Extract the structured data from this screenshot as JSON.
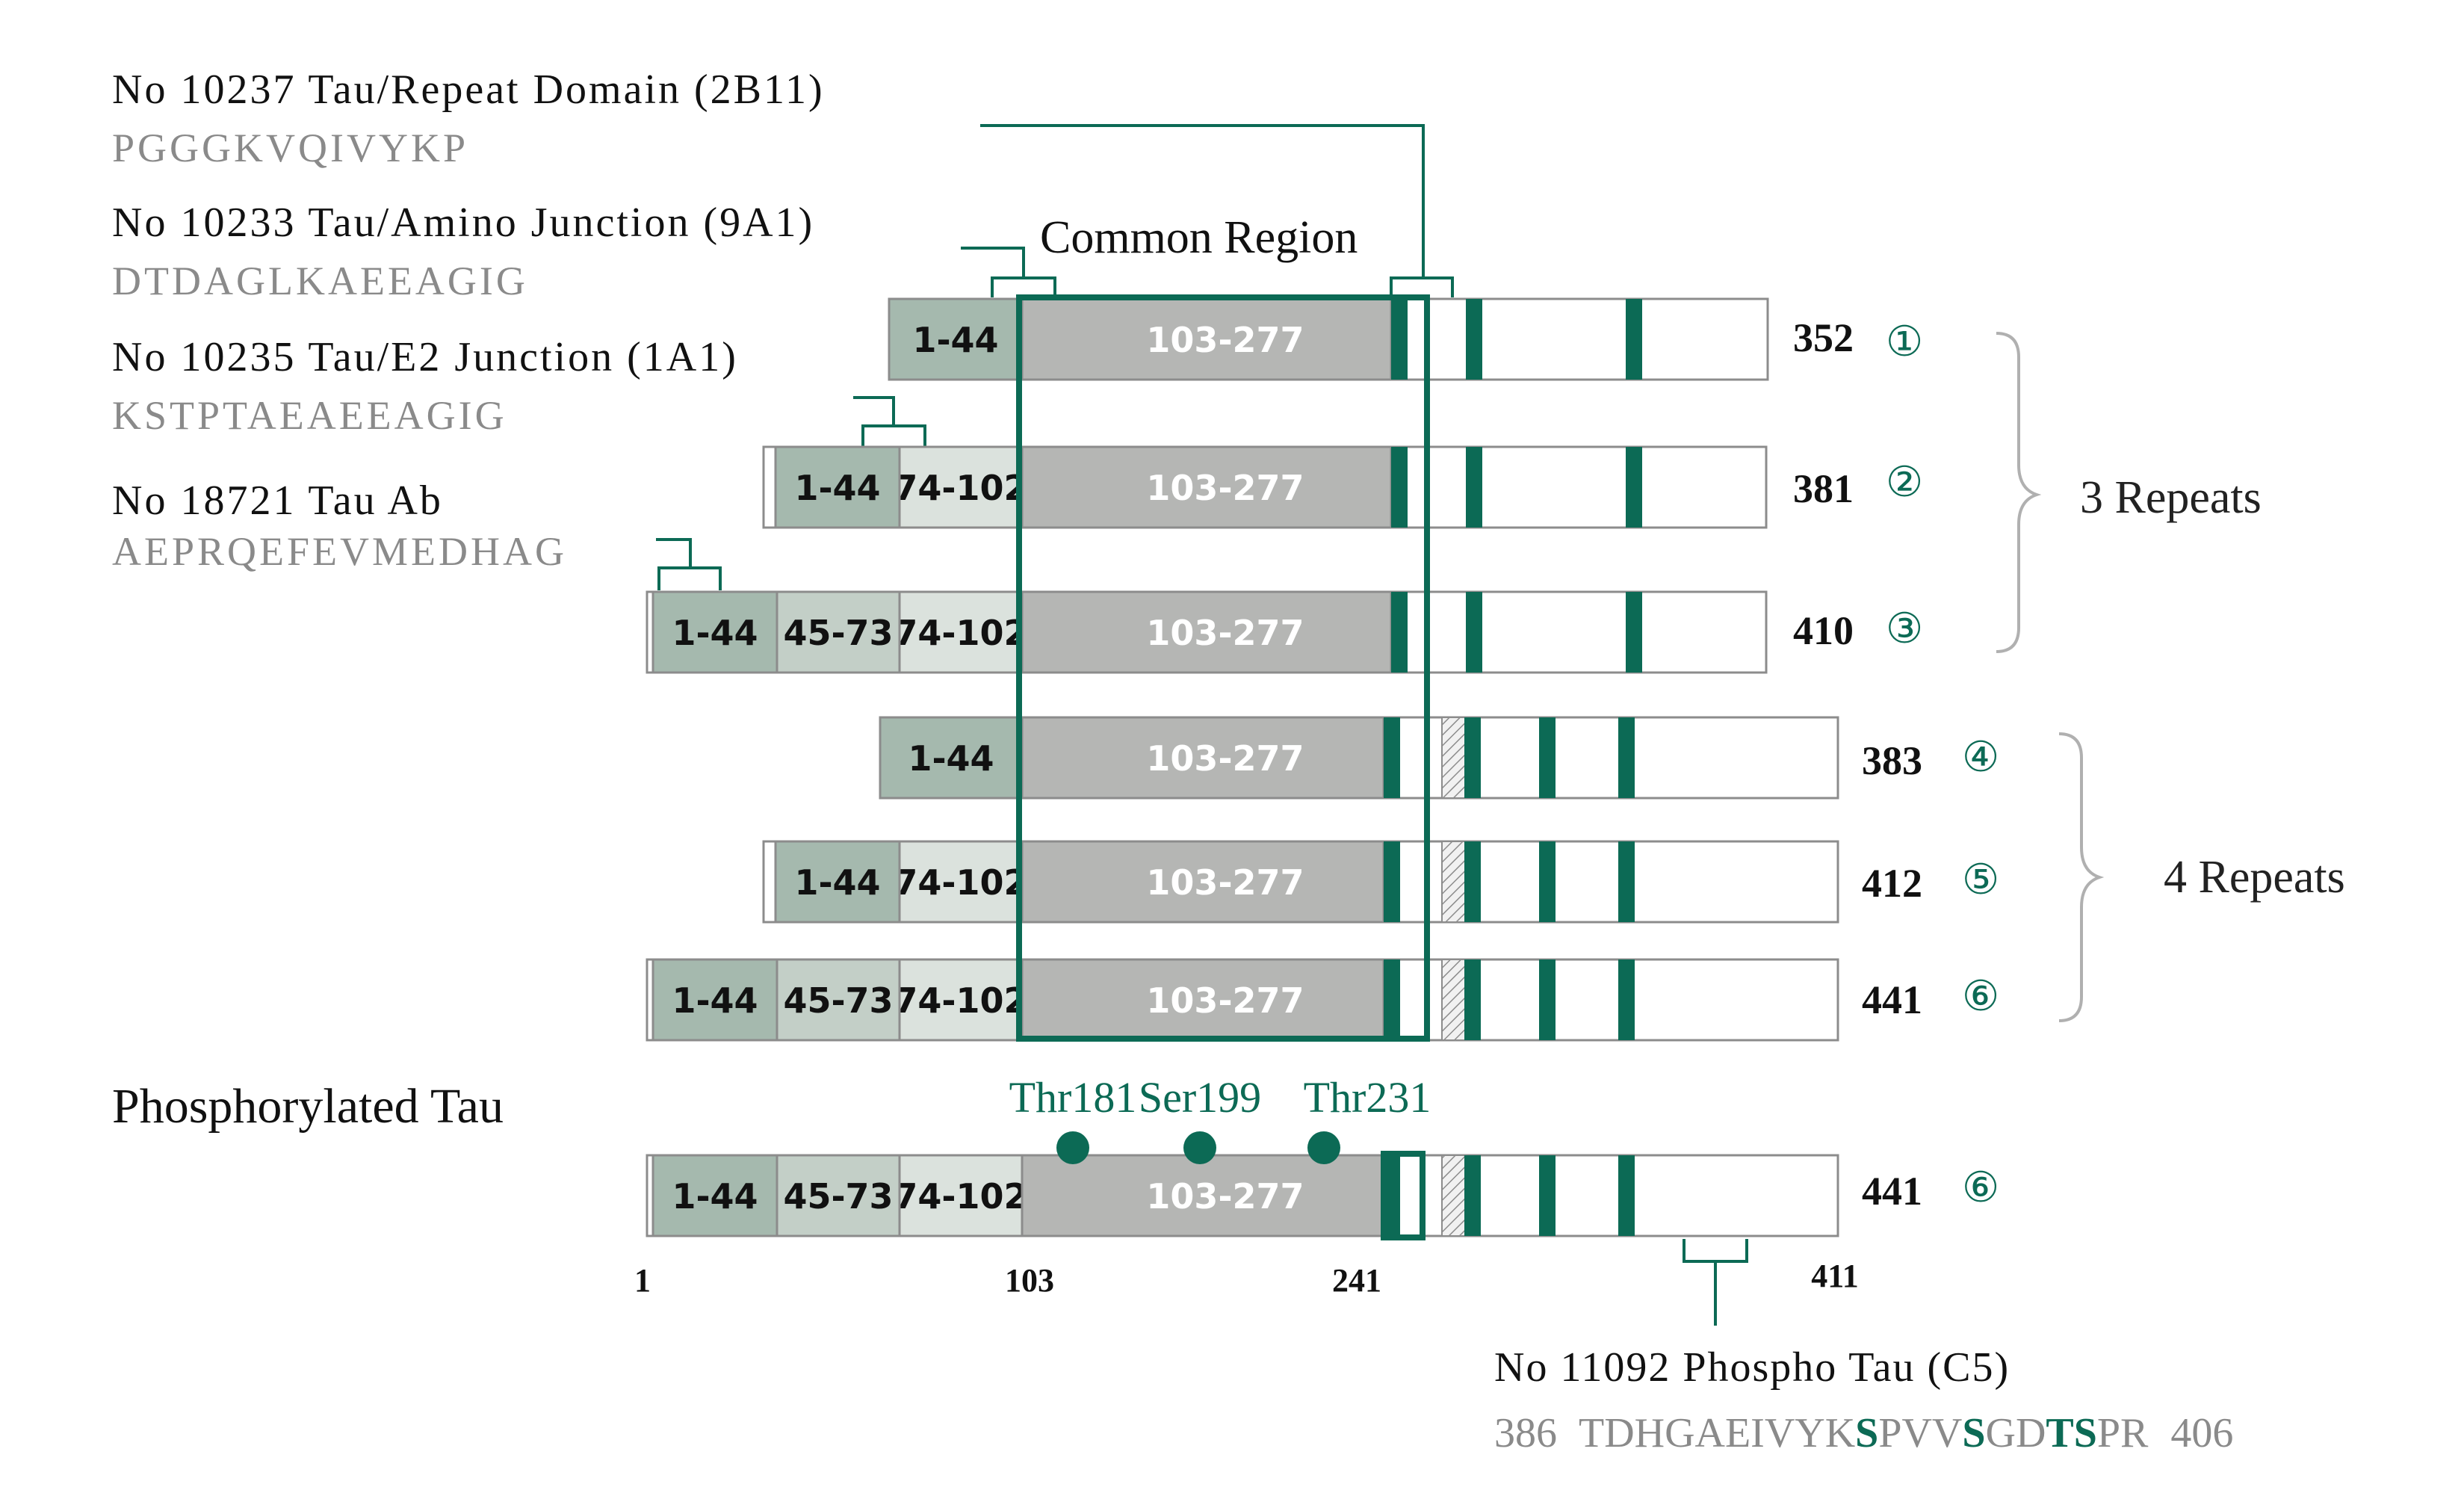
{
  "antibodies": [
    {
      "title": "No 10237 Tau/Repeat Domain (2B11)",
      "sequence": "PGGGKVQIVYKP"
    },
    {
      "title": "No 10233 Tau/Amino Junction (9A1)",
      "sequence": "DTDAGLKAEEAGIG"
    },
    {
      "title": "No 10235 Tau/E2 Junction (1A1)",
      "sequence": "KSTPTAEAEEAGIG"
    },
    {
      "title": "No 18721 Tau Ab",
      "sequence": "AEPRQEFEVMEDHAG"
    }
  ],
  "common_region_label": "Common Region",
  "segments": {
    "n1": "1-44",
    "e2": "45-73",
    "e3": "74-102",
    "core": "103-277"
  },
  "isoforms": [
    {
      "length": "352",
      "marker": "①"
    },
    {
      "length": "381",
      "marker": "②"
    },
    {
      "length": "410",
      "marker": "③"
    },
    {
      "length": "383",
      "marker": "④"
    },
    {
      "length": "412",
      "marker": "⑤"
    },
    {
      "length": "441",
      "marker": "⑥"
    }
  ],
  "groups": {
    "three": "3 Repeats",
    "four": "4 Repeats"
  },
  "phospho": {
    "title": "Phosphorylated Tau",
    "sites": [
      "Thr181",
      "Ser199",
      "Thr231"
    ],
    "length": "441",
    "marker": "⑥",
    "positions": [
      "1",
      "103",
      "241",
      "411"
    ],
    "antibody_title": "No 11092 Phospho Tau (C5)",
    "seq_start": "386",
    "seq_end": "406",
    "seq_parts": [
      {
        "t": "TDHGAEIVYK",
        "hl": false
      },
      {
        "t": "S",
        "hl": true
      },
      {
        "t": "PVV",
        "hl": false
      },
      {
        "t": "S",
        "hl": true
      },
      {
        "t": "GD",
        "hl": false
      },
      {
        "t": "TS",
        "hl": true
      },
      {
        "t": "PR",
        "hl": false
      }
    ]
  },
  "colors": {
    "accent": "#0c6a55",
    "n_terminal": "#a5b9ae",
    "exon2": "#c3cfc7",
    "exon3": "#dbe2dd",
    "core": "#b5b6b4",
    "outline": "#8c8c8c"
  }
}
